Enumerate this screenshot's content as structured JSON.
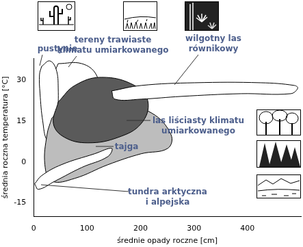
{
  "chart_data": {
    "type": "scatter",
    "x_label": "średnie opady roczne [cm]",
    "y_label": "średnia roczna temperatura [°C]",
    "xlim": [
      0,
      500
    ],
    "xticks": [
      0,
      100,
      200,
      300,
      400
    ],
    "ylim": [
      -20,
      38
    ],
    "yticks": [
      -15,
      0,
      15,
      30
    ],
    "grid": false,
    "series": [
      {
        "name": "tereny trawiaste\nklimatu umiarkowanego",
        "color": "#ffffff",
        "x": [
          46,
          90,
          117,
          121,
          108,
          77,
          52,
          37,
          34,
          36
        ],
        "y": [
          36,
          36,
          32,
          25,
          14,
          5,
          3,
          10,
          22,
          31
        ]
      },
      {
        "name": "pustynie",
        "color": "#ffffff",
        "x": [
          15,
          30,
          42,
          46,
          44,
          36,
          25,
          17,
          12,
          11
        ],
        "y": [
          35,
          37,
          34,
          27,
          17,
          9,
          8,
          15,
          25,
          32
        ]
      },
      {
        "name": "tajga",
        "color": "#bdbdbd",
        "x": [
          34,
          65,
          139,
          220,
          257,
          251,
          201,
          139,
          77,
          34,
          21,
          25
        ],
        "y": [
          16,
          22,
          23,
          18,
          10,
          5,
          3,
          -1,
          -6,
          -7,
          -1,
          10
        ]
      },
      {
        "name": "las liściasty klimatu\numiarkowanego",
        "color": "#5a5a5a",
        "x": [
          46,
          77,
          127,
          189,
          214,
          201,
          158,
          102,
          58,
          37
        ],
        "y": [
          22,
          28,
          31,
          28,
          22,
          14,
          9,
          7,
          9,
          14
        ]
      },
      {
        "name": "wilgotny las\nrównikowy",
        "color": "#ffffff",
        "x": [
          146,
          201,
          301,
          425,
          488,
          494,
          481,
          388,
          276,
          201,
          152
        ],
        "y": [
          26,
          28,
          29,
          29,
          28,
          27,
          25,
          25,
          24,
          23,
          23
        ]
      },
      {
        "name": "tundra arktyczna\ni alpejska",
        "color": "#ffffff",
        "x": [
          2,
          15,
          52,
          114,
          146,
          139,
          90,
          40,
          9
        ],
        "y": [
          -8,
          -5,
          -1,
          3,
          5,
          2,
          -2,
          -7,
          -10
        ]
      }
    ]
  }
}
